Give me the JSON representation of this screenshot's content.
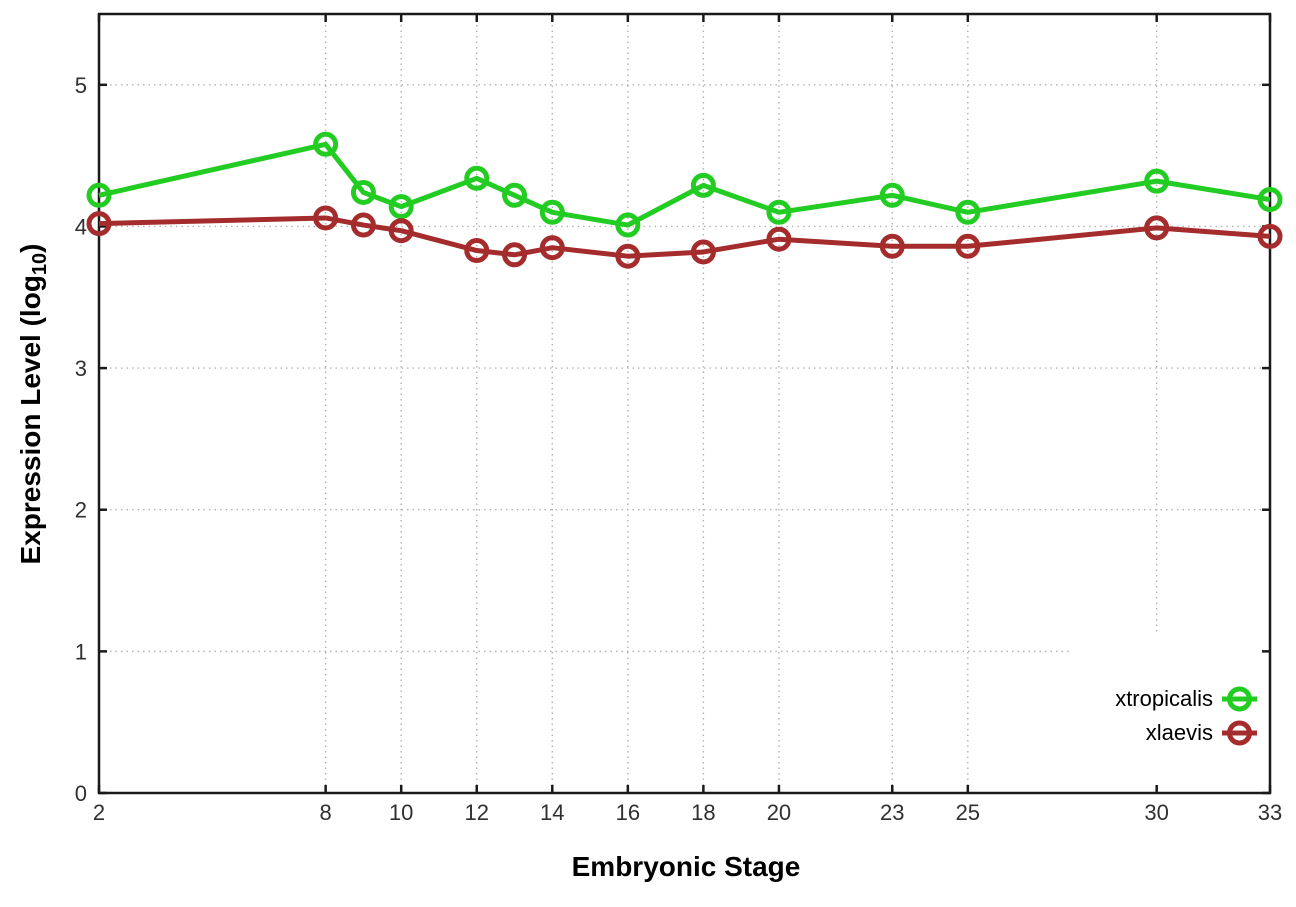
{
  "chart_data": {
    "type": "line",
    "title": "",
    "xlabel": "Embryonic Stage",
    "ylabel": "Expression Level (log10)",
    "ylabel_parts": {
      "pre": "Expression Level (log",
      "sub": "10",
      "post": ")"
    },
    "x": [
      2,
      8,
      9,
      10,
      12,
      13,
      14,
      16,
      18,
      20,
      23,
      25,
      30,
      33
    ],
    "xticks": [
      2,
      8,
      10,
      12,
      14,
      16,
      18,
      20,
      23,
      25,
      30,
      33
    ],
    "yticks": [
      0,
      1,
      2,
      3,
      4,
      5
    ],
    "xlim": [
      2,
      33
    ],
    "ylim": [
      0,
      5.5
    ],
    "grid": true,
    "grid_style": "dotted",
    "marker": "open-circle",
    "legend_position": "bottom-right-inside",
    "colors": {
      "border": "#1a1a1a",
      "grid": "#b3b3b3",
      "tick_text": "#303030"
    },
    "series": [
      {
        "name": "xtropicalis",
        "color": "#22cc22",
        "values": [
          4.22,
          4.58,
          4.24,
          4.14,
          4.34,
          4.22,
          4.1,
          4.01,
          4.29,
          4.1,
          4.22,
          4.1,
          4.32,
          4.19
        ]
      },
      {
        "name": "xlaevis",
        "color": "#a52c2c",
        "values": [
          4.02,
          4.06,
          4.01,
          3.97,
          3.83,
          3.8,
          3.85,
          3.79,
          3.82,
          3.91,
          3.86,
          3.86,
          3.99,
          3.93
        ]
      }
    ]
  }
}
